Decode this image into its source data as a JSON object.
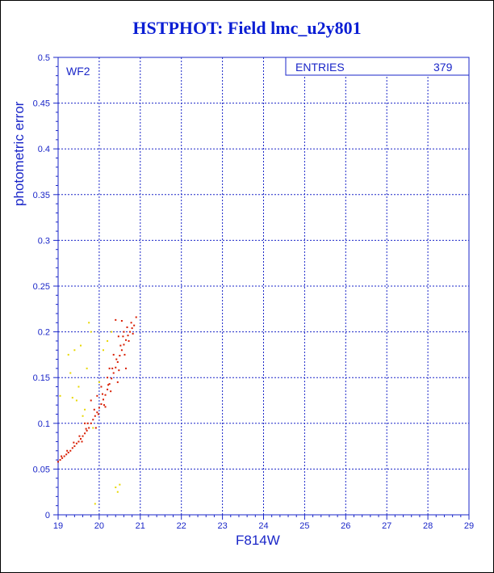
{
  "title": "HSTPHOT: Field lmc_u2y801",
  "chart_data": {
    "type": "scatter",
    "title": "HSTPHOT: Field lmc_u2y801",
    "xlabel": "F814W",
    "ylabel": "photometric error",
    "xlim": [
      19,
      29
    ],
    "ylim": [
      0,
      0.5
    ],
    "xticks": [
      "19",
      "20",
      "21",
      "22",
      "23",
      "24",
      "25",
      "26",
      "27",
      "28",
      "29"
    ],
    "yticks": [
      "0",
      "0.05",
      "0.1",
      "0.15",
      "0.2",
      "0.25",
      "0.3",
      "0.35",
      "0.4",
      "0.45",
      "0.5"
    ],
    "grid": true,
    "annotation": "WF2",
    "stats_box": {
      "label": "ENTRIES",
      "value": "379"
    },
    "colors": {
      "axis": "#1a26c8",
      "main": "#d81c00",
      "secondary": "#e8d800",
      "title": "#0a1ed4"
    },
    "series": [
      {
        "color": "#d81c00",
        "points": [
          [
            19.0,
            0.058
          ],
          [
            19.05,
            0.06
          ],
          [
            19.1,
            0.062
          ],
          [
            19.15,
            0.064
          ],
          [
            19.2,
            0.066
          ],
          [
            19.25,
            0.068
          ],
          [
            19.3,
            0.07
          ],
          [
            19.35,
            0.073
          ],
          [
            19.4,
            0.075
          ],
          [
            19.45,
            0.078
          ],
          [
            19.5,
            0.08
          ],
          [
            19.55,
            0.083
          ],
          [
            19.6,
            0.086
          ],
          [
            19.65,
            0.089
          ],
          [
            19.7,
            0.092
          ],
          [
            19.75,
            0.095
          ],
          [
            19.8,
            0.1
          ],
          [
            19.85,
            0.104
          ],
          [
            19.9,
            0.108
          ],
          [
            19.95,
            0.112
          ],
          [
            20.0,
            0.117
          ],
          [
            20.05,
            0.121
          ],
          [
            20.1,
            0.126
          ],
          [
            20.15,
            0.131
          ],
          [
            20.2,
            0.137
          ],
          [
            20.25,
            0.143
          ],
          [
            20.3,
            0.149
          ],
          [
            20.35,
            0.155
          ],
          [
            20.4,
            0.161
          ],
          [
            20.45,
            0.167
          ],
          [
            20.5,
            0.174
          ],
          [
            20.55,
            0.18
          ],
          [
            20.6,
            0.186
          ],
          [
            20.65,
            0.191
          ],
          [
            20.7,
            0.196
          ],
          [
            20.75,
            0.2
          ],
          [
            20.8,
            0.204
          ],
          [
            20.85,
            0.207
          ],
          [
            19.08,
            0.064
          ],
          [
            19.22,
            0.07
          ],
          [
            19.38,
            0.079
          ],
          [
            19.52,
            0.086
          ],
          [
            19.58,
            0.08
          ],
          [
            19.68,
            0.094
          ],
          [
            19.72,
            0.1
          ],
          [
            19.88,
            0.115
          ],
          [
            19.98,
            0.11
          ],
          [
            20.08,
            0.132
          ],
          [
            20.12,
            0.12
          ],
          [
            20.22,
            0.142
          ],
          [
            20.28,
            0.135
          ],
          [
            20.32,
            0.16
          ],
          [
            20.42,
            0.17
          ],
          [
            20.48,
            0.158
          ],
          [
            20.52,
            0.185
          ],
          [
            20.58,
            0.195
          ],
          [
            20.62,
            0.175
          ],
          [
            20.68,
            0.205
          ],
          [
            20.72,
            0.19
          ],
          [
            20.78,
            0.21
          ],
          [
            20.9,
            0.216
          ],
          [
            20.55,
            0.212
          ],
          [
            20.4,
            0.213
          ],
          [
            20.35,
            0.175
          ],
          [
            20.2,
            0.15
          ],
          [
            20.05,
            0.14
          ],
          [
            19.8,
            0.125
          ],
          [
            19.65,
            0.1
          ],
          [
            19.92,
            0.095
          ],
          [
            20.15,
            0.118
          ],
          [
            20.45,
            0.145
          ],
          [
            20.65,
            0.16
          ],
          [
            20.82,
            0.198
          ],
          [
            20.6,
            0.2
          ],
          [
            20.47,
            0.195
          ],
          [
            20.25,
            0.16
          ],
          [
            19.95,
            0.13
          ]
        ]
      },
      {
        "color": "#e8d800",
        "points": [
          [
            19.05,
            0.13
          ],
          [
            19.25,
            0.175
          ],
          [
            19.4,
            0.18
          ],
          [
            19.5,
            0.14
          ],
          [
            19.55,
            0.185
          ],
          [
            19.65,
            0.115
          ],
          [
            19.75,
            0.21
          ],
          [
            19.7,
            0.16
          ],
          [
            19.45,
            0.125
          ],
          [
            19.3,
            0.155
          ],
          [
            19.85,
            0.095
          ],
          [
            20.0,
            0.145
          ],
          [
            20.1,
            0.18
          ],
          [
            20.2,
            0.19
          ],
          [
            20.3,
            0.2
          ],
          [
            20.4,
            0.03
          ],
          [
            20.5,
            0.033
          ],
          [
            20.45,
            0.025
          ],
          [
            19.8,
            0.2
          ],
          [
            19.6,
            0.108
          ],
          [
            19.35,
            0.128
          ],
          [
            19.9,
            0.012
          ]
        ]
      }
    ]
  }
}
